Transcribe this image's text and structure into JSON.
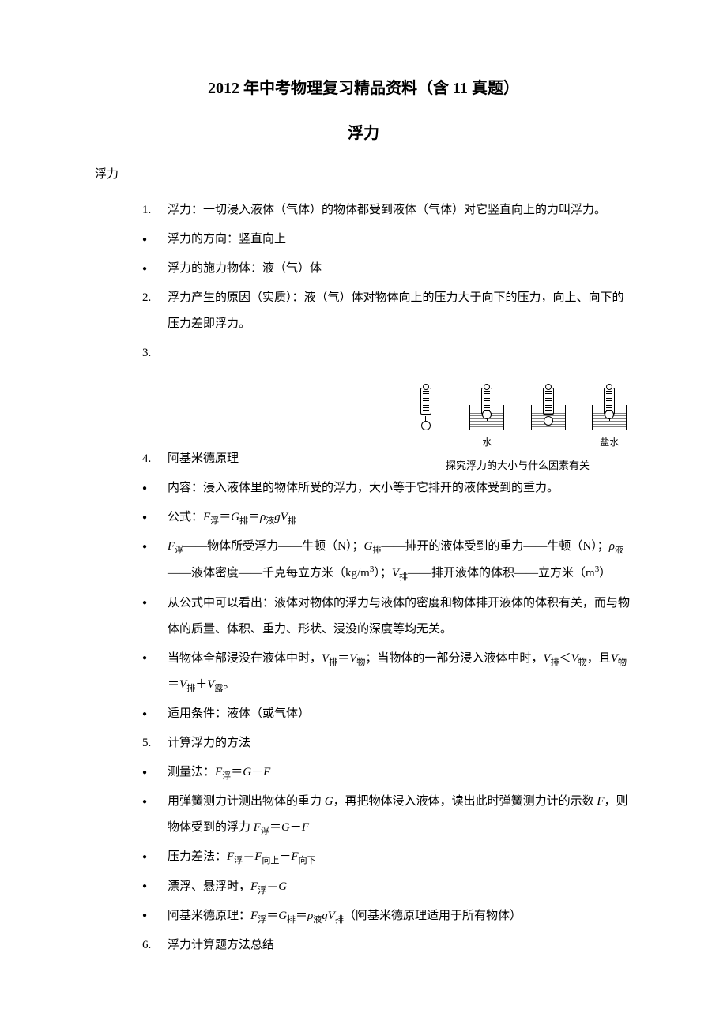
{
  "title_main": "2012 年中考物理复习精品资料（含 11 真题）",
  "title_sub": "浮力",
  "section_heading": "浮力",
  "items": [
    {
      "num": "1.",
      "text": "浮力：一切浸入液体（气体）的物体都受到液体（气体）对它竖直向上的力叫浮力。"
    },
    {
      "bullet": true,
      "text": "浮力的方向：竖直向上"
    },
    {
      "bullet": true,
      "text": "浮力的施力物体：液（气）体"
    },
    {
      "num": "2.",
      "text": "浮力产生的原因（实质）：液（气）体对物体向上的压力大于向下的压力，向上、向下的压力差即浮力。"
    },
    {
      "num": "3.",
      "text": ""
    },
    {
      "num": "4.",
      "text": "阿基米德原理"
    },
    {
      "bullet": true,
      "text": "内容：浸入液体里的物体所受的浮力，大小等于它排开的液体受到的重力。"
    },
    {
      "bullet": true,
      "html": true,
      "text": "公式：<span class=\"italic\">F</span><span class=\"sub-text\">浮</span>＝<span class=\"italic\">G</span><span class=\"sub-text\">排</span>＝<span class=\"italic\">ρ</span><span class=\"sub-text\">液</span><span class=\"italic\">gV</span><span class=\"sub-text\">排</span>"
    },
    {
      "bullet": true,
      "html": true,
      "text": "<span class=\"italic\">F</span><span class=\"sub-text\">浮</span>——物体所受浮力——牛顿（N）；<span class=\"italic\">G</span><span class=\"sub-text\">排</span>——排开的液体受到的重力——牛顿（N）；<span class=\"italic\">ρ</span><span class=\"sub-text\">液</span>——液体密度——千克每立方米（kg/m<span class=\"sup-text\">3</span>）；<span class=\"italic\">V</span><span class=\"sub-text\">排</span>——排开液体的体积——立方米（m<span class=\"sup-text\">3</span>）"
    },
    {
      "bullet": true,
      "text": "从公式中可以看出：液体对物体的浮力与液体的密度和物体排开液体的体积有关，而与物体的质量、体积、重力、形状、浸没的深度等均无关。"
    },
    {
      "bullet": true,
      "html": true,
      "text": "当物体全部浸没在液体中时，<span class=\"italic\">V</span><span class=\"sub-text\">排</span>＝<span class=\"italic\">V</span><span class=\"sub-text\">物</span>；当物体的一部分浸入液体中时，<span class=\"italic\">V</span><span class=\"sub-text\">排</span>＜<span class=\"italic\">V</span><span class=\"sub-text\">物</span>，且<span class=\"italic\">V</span><span class=\"sub-text\">物</span>＝<span class=\"italic\">V</span><span class=\"sub-text\">排</span>＋<span class=\"italic\">V</span><span class=\"sub-text\">露</span>。"
    },
    {
      "bullet": true,
      "text": "适用条件：液体（或气体）"
    },
    {
      "num": "5.",
      "text": "计算浮力的方法"
    },
    {
      "bullet": true,
      "html": true,
      "text": "测量法：<span class=\"italic\">F</span><span class=\"sub-text\">浮</span>＝<span class=\"italic\">G</span>－<span class=\"italic\">F</span>"
    },
    {
      "bullet": true,
      "html": true,
      "text": "用弹簧测力计测出物体的重力 <span class=\"italic\">G</span>，再把物体浸入液体，读出此时弹簧测力计的示数 <span class=\"italic\">F</span>，则物体受到的浮力 <span class=\"italic\">F</span><span class=\"sub-text\">浮</span>＝<span class=\"italic\">G</span>－<span class=\"italic\">F</span>"
    },
    {
      "bullet": true,
      "html": true,
      "text": "压力差法：<span class=\"italic\">F</span><span class=\"sub-text\">浮</span>＝<span class=\"italic\">F</span><span class=\"sub-text\">向上</span>－<span class=\"italic\">F</span><span class=\"sub-text\">向下</span>"
    },
    {
      "bullet": true,
      "html": true,
      "text": "漂浮、悬浮时，<span class=\"italic\">F</span><span class=\"sub-text\">浮</span>＝<span class=\"italic\">G</span>"
    },
    {
      "bullet": true,
      "html": true,
      "text": "阿基米德原理：<span class=\"italic\">F</span><span class=\"sub-text\">浮</span>＝<span class=\"italic\">G</span><span class=\"sub-text\">排</span>＝<span class=\"italic\">ρ</span><span class=\"sub-text\">液</span><span class=\"italic\">gV</span><span class=\"sub-text\">排</span>（阿基米德原理适用于所有物体）"
    },
    {
      "num": "6.",
      "text": "浮力计算题方法总结"
    }
  ],
  "figure": {
    "labels": [
      "",
      "水",
      "",
      "盐水"
    ],
    "caption": "探究浮力的大小与什么因素有关"
  }
}
